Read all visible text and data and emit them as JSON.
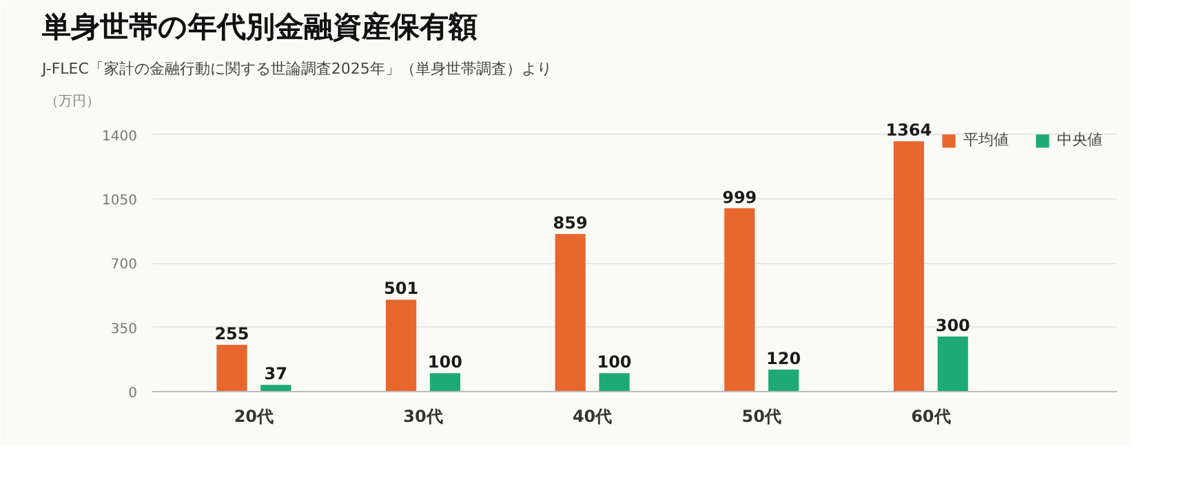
{
  "chart_data": {
    "type": "bar",
    "title": "単身世帯の年代別金融資産保有額",
    "subtitle": "J-FLEC「家計の金融行動に関する世論調査2025年」（単身世帯調査）より",
    "ylabel": "（万円）",
    "categories": [
      "20代",
      "30代",
      "40代",
      "50代",
      "60代"
    ],
    "series": [
      {
        "name": "平均値",
        "color": "#e8672f",
        "values": [
          255,
          501,
          859,
          999,
          1364
        ]
      },
      {
        "name": "中央値",
        "color": "#1eaa78",
        "values": [
          37,
          100,
          100,
          120,
          300
        ]
      }
    ],
    "ylim": [
      0,
      1500
    ],
    "yticks": [
      0,
      350,
      700,
      1050,
      1400
    ],
    "grid": "y",
    "legend": "top right",
    "data_labels": true
  }
}
